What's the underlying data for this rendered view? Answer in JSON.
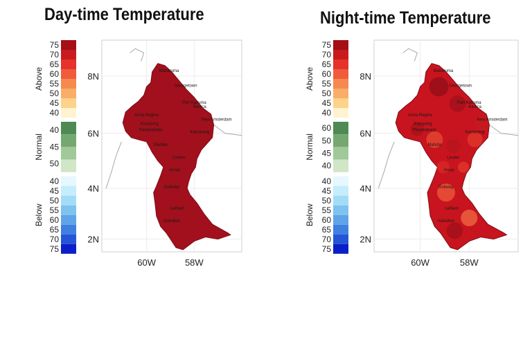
{
  "panels": [
    {
      "title": "Day-time Temperature",
      "legend": {
        "above_label": "Above",
        "normal_label": "Normal",
        "below_label": "Below",
        "above_ticks": [
          "75",
          "70",
          "65",
          "60",
          "55",
          "50",
          "45",
          "40"
        ],
        "normal_ticks": [
          "40",
          "45",
          "50"
        ],
        "below_ticks": [
          "40",
          "45",
          "50",
          "55",
          "60",
          "65",
          "70",
          "75"
        ]
      },
      "lat_ticks": [
        "8N",
        "6N",
        "4N",
        "2N"
      ],
      "lon_ticks": [
        "60W",
        "58W"
      ],
      "places": [
        "Lethem",
        "Annai",
        "Dubulay",
        "Aishalton",
        "Mahdia",
        "Kurupung",
        "Bartica",
        "Mabaruma",
        "Georgetown",
        "New Amsterdam",
        "Anna Regina",
        "Linden",
        "Paramakatoi",
        "Kamarang",
        "Port Kaituma"
      ],
      "fill_color": "#a1101c"
    },
    {
      "title": "Night-time Temperature",
      "legend": {
        "above_label": "Above",
        "normal_label": "Normal",
        "below_label": "Below",
        "above_ticks": [
          "75",
          "70",
          "65",
          "60",
          "55",
          "50",
          "45",
          "40"
        ],
        "normal_ticks": [
          "60",
          "50",
          "45",
          "40"
        ],
        "below_ticks": [
          "40",
          "45",
          "50",
          "55",
          "60",
          "65",
          "70",
          "75"
        ]
      },
      "lat_ticks": [
        "8N",
        "6N",
        "4N",
        "2N"
      ],
      "lon_ticks": [
        "60W",
        "58W"
      ],
      "places": [
        "Lethem",
        "Annai",
        "Dubulay",
        "Aishalton",
        "Mahdia",
        "Kurupung",
        "Bartica",
        "Mabaruma",
        "Georgetown",
        "New Amsterdam",
        "Anna Regina",
        "Linden",
        "Paramakatoi",
        "Kamarang",
        "Port Kaituma"
      ],
      "fill_color": "#c8141e"
    }
  ],
  "legend_colors": {
    "above": [
      "#a50f15",
      "#c81b1e",
      "#e5322a",
      "#f05c3b",
      "#f6894f",
      "#f9ad66",
      "#fdd28a",
      "#fff4cf"
    ],
    "normal": [
      "#4f8a55",
      "#75a870",
      "#a0c899",
      "#cfe6c7"
    ],
    "below": [
      "#e6f7fd",
      "#c6edfb",
      "#a3dcf7",
      "#7fc2ef",
      "#5fa3e8",
      "#3f7fe0",
      "#2455d6",
      "#0b1fc8"
    ]
  }
}
